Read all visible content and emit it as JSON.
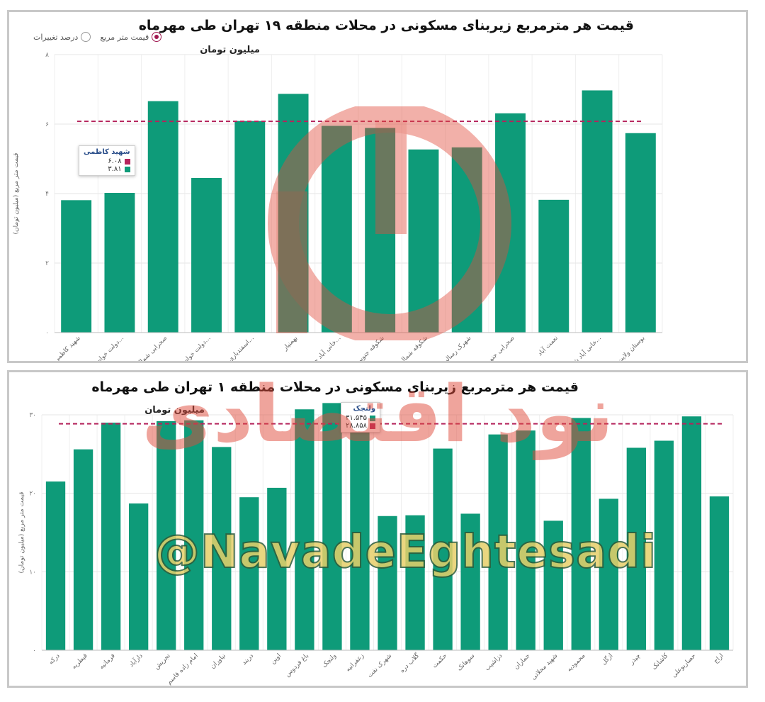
{
  "chart_data": [
    {
      "type": "bar",
      "title": "قیمت هر مترمربع زیربنای مسکونی در محلات منطقه ۱۹ تهران طی مهرماه",
      "subtitle": "میلیون تومان",
      "ylabel": "قیمت متر مربع (میلیون تومان)",
      "ylim": [
        0,
        8
      ],
      "yticks": [
        "۰",
        "۲",
        "۴",
        "۶",
        "۸"
      ],
      "ytick_values": [
        0,
        2,
        4,
        6,
        8
      ],
      "categories": [
        "شهید کاظمی",
        "دولت خواه جنو...",
        "صحرایی شمال",
        "دولت خواه شما...",
        "اسفندیاری - بس...",
        "بهمنیار",
        "خانی آباد جنو...",
        "شکوفه جنوبی",
        "شکوفه شمالی",
        "شهرک رسالت",
        "صحرایی جنوبی",
        "نعمت آباد",
        "خانی آباد شما...",
        "بوستان ولایت"
      ],
      "values": [
        3.81,
        4.02,
        6.66,
        4.45,
        6.09,
        6.87,
        5.95,
        5.89,
        5.27,
        5.33,
        6.31,
        3.82,
        6.97,
        5.74
      ],
      "average": 6.08,
      "bar_color": "#0e9b79",
      "average_color": "#b5245c",
      "grid": true,
      "legend": "none",
      "tooltip": {
        "name": "شهید کاظمی",
        "avg_value": "۶.۰۸",
        "bar_value": "۳.۸۱"
      },
      "toggle": {
        "selected": "قیمت متر مربع",
        "other": "درصد تغییرات"
      }
    },
    {
      "type": "bar",
      "title": "قیمت هر مترمربع زیربنای مسکونی در محلات منطقه ۱ تهران طی مهرماه",
      "subtitle": "میلیون تومان",
      "ylabel": "قیمت متر مربع (میلیون تومان)",
      "ylim": [
        0,
        30
      ],
      "yticks": [
        "۰",
        "۱۰",
        "۲۰",
        "۳۰"
      ],
      "ytick_values": [
        0,
        10,
        20,
        30
      ],
      "categories": [
        "درکه",
        "قیطریه",
        "فرمانیه",
        "دارآباد",
        "تجریش",
        "امام زاده قاسم",
        "نیاوران",
        "دربند",
        "اوین",
        "باغ فردوس",
        "ولنجک",
        "زعفرانیه",
        "شهرک نفت",
        "گلاب دره",
        "حکمت",
        "سوهانک",
        "دزاشیب",
        "جماران",
        "شهید محلاتی",
        "محمودیه",
        "ازگل",
        "چیذر",
        "کاشانک",
        "حصاربوعلی",
        "اراج"
      ],
      "values": [
        21.5,
        25.6,
        29.0,
        18.7,
        29.2,
        29.3,
        25.9,
        19.5,
        20.7,
        30.7,
        31.5,
        27.8,
        17.1,
        17.2,
        25.7,
        17.4,
        27.5,
        28.0,
        16.5,
        29.6,
        19.3,
        25.8,
        26.7,
        29.8,
        19.6
      ],
      "average": 28.858,
      "bar_color": "#0e9b79",
      "average_color": "#b5245c",
      "grid": true,
      "legend": "none",
      "tooltip": {
        "name": "ولنجک",
        "bar_value": "۳۱.۵۴۵",
        "avg_value": "۲۸.۸۵۸"
      }
    }
  ],
  "watermark": {
    "handle": "@NavadeEghtesadi",
    "text": "نود اقتصادی"
  }
}
